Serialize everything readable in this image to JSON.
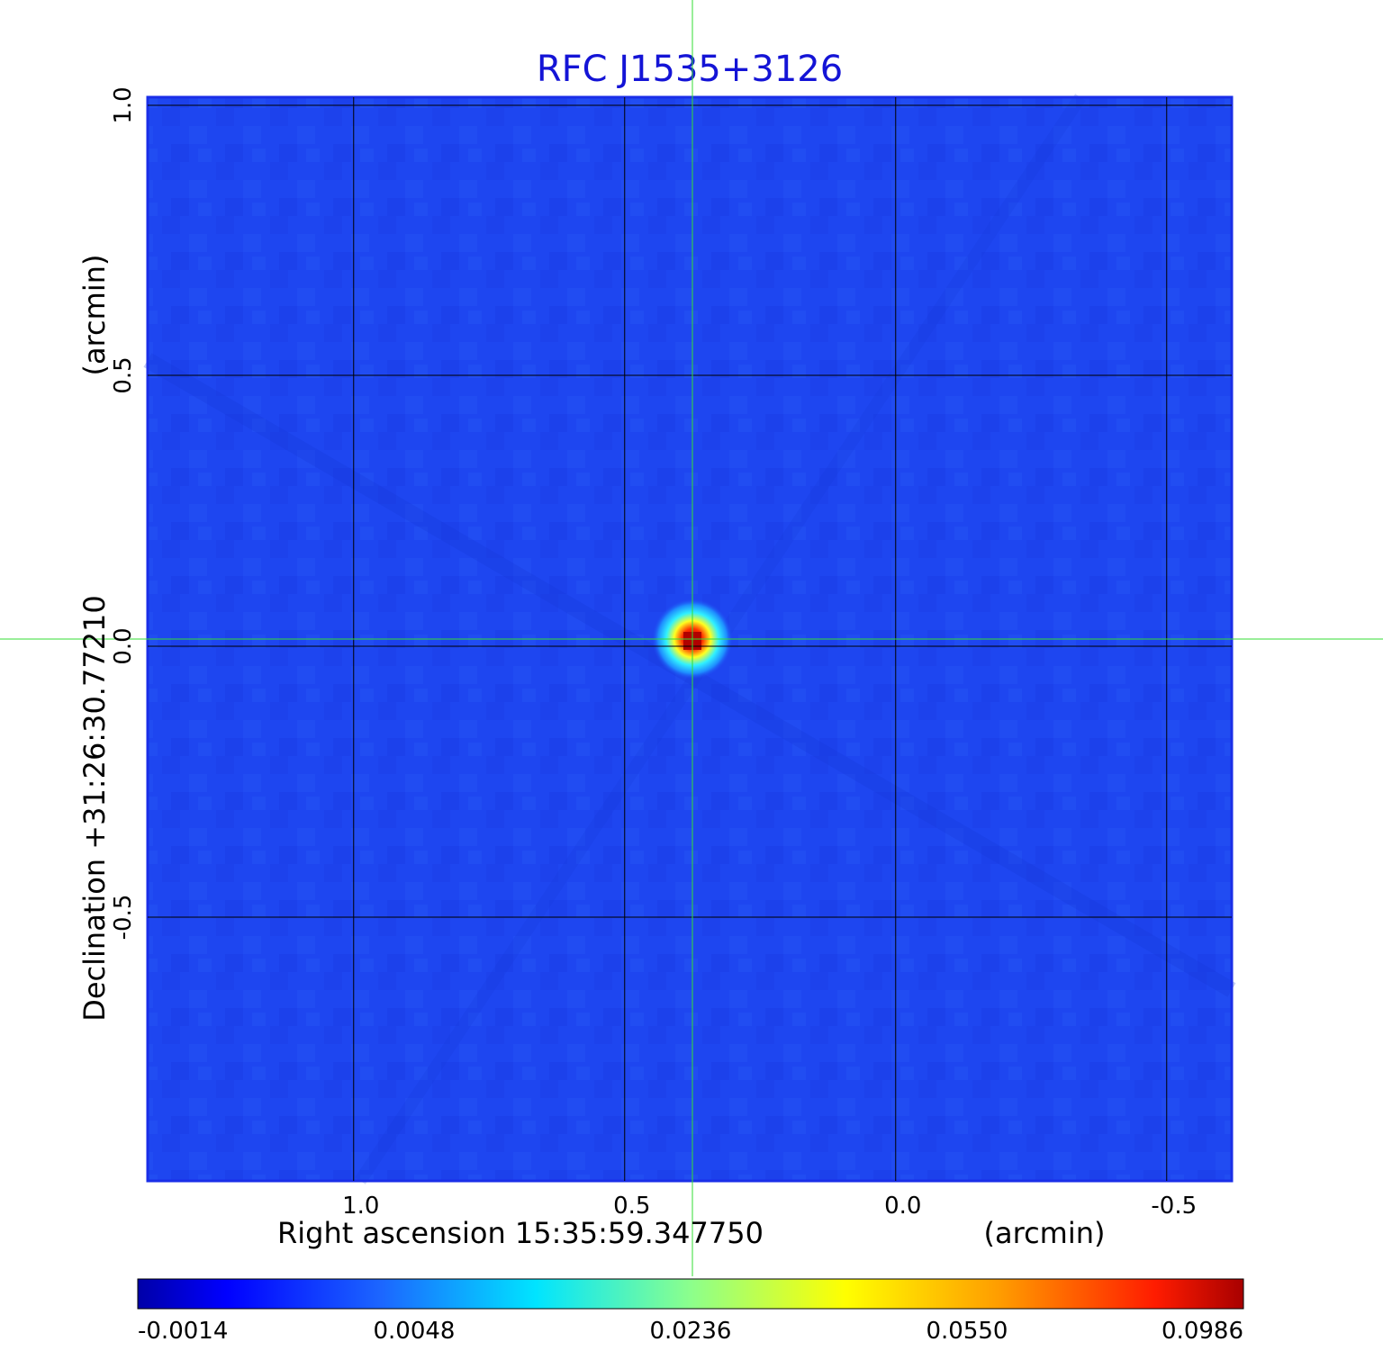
{
  "colors": {
    "title": "#1414d6",
    "background_map": "#1e46f0",
    "grid": "#000000",
    "crosshair": "#33dd33",
    "frame": "#1a2ee8"
  },
  "chart_data": {
    "type": "heatmap",
    "title": "RFC J1535+3126",
    "xlabel": "Right ascension  15:35:59.347750",
    "xlabel_unit": "(arcmin)",
    "ylabel": "Declination  +31:26:30.77210",
    "ylabel_unit": "(arcmin)",
    "x_ticks": [
      {
        "value": 1.0,
        "label": "1.0"
      },
      {
        "value": 0.5,
        "label": "0.5"
      },
      {
        "value": 0.0,
        "label": "0.0"
      },
      {
        "value": -0.5,
        "label": "-0.5"
      }
    ],
    "y_ticks": [
      {
        "value": 1.0,
        "label": "1.0"
      },
      {
        "value": 0.5,
        "label": "0.5"
      },
      {
        "value": 0.0,
        "label": "0.0"
      },
      {
        "value": -0.5,
        "label": "-0.5"
      }
    ],
    "xlim": [
      1.38,
      -0.62
    ],
    "ylim": [
      -1.0,
      1.0
    ],
    "grid": true,
    "crosshair": {
      "x": 0.375,
      "y": 0.0
    },
    "peak": {
      "x": 0.375,
      "y": 0.0,
      "value": 0.0986
    },
    "colorbar": {
      "tick_labels": [
        "-0.0014",
        "0.0048",
        "0.0236",
        "0.0550",
        "0.0986"
      ],
      "min": -0.0014,
      "max": 0.0986,
      "colormap": "jet",
      "stops": [
        {
          "pos": 0.0,
          "color": "#0000a8"
        },
        {
          "pos": 0.08,
          "color": "#0000ff"
        },
        {
          "pos": 0.22,
          "color": "#1c66ff"
        },
        {
          "pos": 0.36,
          "color": "#00e4ff"
        },
        {
          "pos": 0.5,
          "color": "#8cff8c"
        },
        {
          "pos": 0.64,
          "color": "#ffff00"
        },
        {
          "pos": 0.78,
          "color": "#ff9c00"
        },
        {
          "pos": 0.92,
          "color": "#ff1c00"
        },
        {
          "pos": 1.0,
          "color": "#a80000"
        }
      ]
    }
  }
}
